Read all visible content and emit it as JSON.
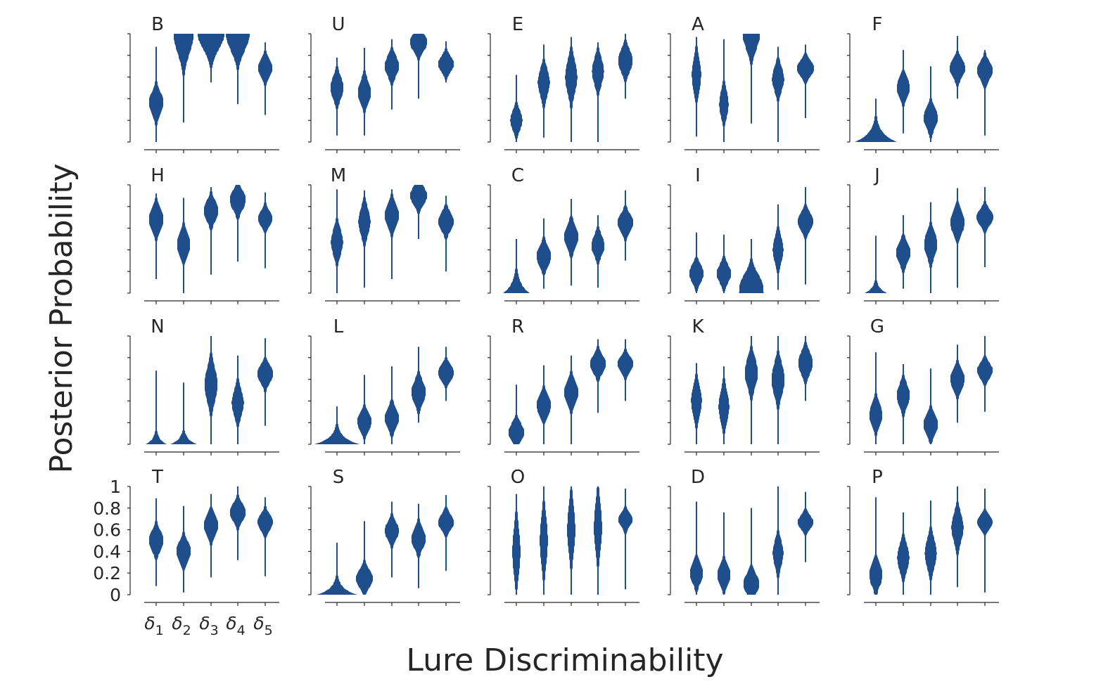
{
  "chart_data": {
    "type": "violin",
    "xlabel": "Lure Discriminability",
    "ylabel": "Posterior Probability",
    "x_tick_labels": [
      {
        "sym": "δ",
        "sub": "1"
      },
      {
        "sym": "δ",
        "sub": "2"
      },
      {
        "sym": "δ",
        "sub": "3"
      },
      {
        "sym": "δ",
        "sub": "4"
      },
      {
        "sym": "δ",
        "sub": "5"
      }
    ],
    "y_tick_labels": [
      "0",
      "0.2",
      "0.4",
      "0.6",
      "0.8",
      "1"
    ],
    "ylim": [
      0,
      1
    ],
    "color": "#1f4e8c",
    "note": "Each violin: lo, hi = extent of posterior; c = center of mass; w = relative max half-width (1 = full); s = spread.",
    "panels": [
      {
        "label": "B",
        "violins": [
          {
            "lo": 0.0,
            "hi": 0.88,
            "c": 0.36,
            "w": 0.55,
            "s": 0.1
          },
          {
            "lo": 0.18,
            "hi": 1.0,
            "c": 1.0,
            "w": 0.75,
            "s": 0.18
          },
          {
            "lo": 0.55,
            "hi": 1.0,
            "c": 1.0,
            "w": 1.0,
            "s": 0.14
          },
          {
            "lo": 0.35,
            "hi": 1.0,
            "c": 1.0,
            "w": 0.9,
            "s": 0.15
          },
          {
            "lo": 0.25,
            "hi": 0.92,
            "c": 0.68,
            "w": 0.55,
            "s": 0.08
          }
        ]
      },
      {
        "label": "U",
        "violins": [
          {
            "lo": 0.06,
            "hi": 0.78,
            "c": 0.5,
            "w": 0.5,
            "s": 0.1
          },
          {
            "lo": 0.06,
            "hi": 0.87,
            "c": 0.46,
            "w": 0.5,
            "s": 0.1
          },
          {
            "lo": 0.3,
            "hi": 0.95,
            "c": 0.7,
            "w": 0.55,
            "s": 0.09
          },
          {
            "lo": 0.4,
            "hi": 1.0,
            "c": 0.92,
            "w": 0.65,
            "s": 0.08
          },
          {
            "lo": 0.55,
            "hi": 0.93,
            "c": 0.72,
            "w": 0.6,
            "s": 0.07
          }
        ]
      },
      {
        "label": "E",
        "violins": [
          {
            "lo": 0.0,
            "hi": 0.62,
            "c": 0.2,
            "w": 0.45,
            "s": 0.09
          },
          {
            "lo": 0.04,
            "hi": 0.9,
            "c": 0.55,
            "w": 0.45,
            "s": 0.12
          },
          {
            "lo": 0.0,
            "hi": 0.97,
            "c": 0.6,
            "w": 0.45,
            "s": 0.15
          },
          {
            "lo": 0.0,
            "hi": 0.92,
            "c": 0.65,
            "w": 0.45,
            "s": 0.12
          },
          {
            "lo": 0.4,
            "hi": 1.0,
            "c": 0.75,
            "w": 0.55,
            "s": 0.1
          }
        ]
      },
      {
        "label": "A",
        "violins": [
          {
            "lo": 0.05,
            "hi": 0.97,
            "c": 0.62,
            "w": 0.35,
            "s": 0.15
          },
          {
            "lo": 0.0,
            "hi": 0.95,
            "c": 0.35,
            "w": 0.35,
            "s": 0.12
          },
          {
            "lo": 0.17,
            "hi": 1.0,
            "c": 1.0,
            "w": 0.65,
            "s": 0.14
          },
          {
            "lo": 0.0,
            "hi": 0.88,
            "c": 0.58,
            "w": 0.45,
            "s": 0.11
          },
          {
            "lo": 0.22,
            "hi": 0.9,
            "c": 0.68,
            "w": 0.65,
            "s": 0.07
          }
        ]
      },
      {
        "label": "F",
        "violins": [
          {
            "lo": 0.0,
            "hi": 0.4,
            "c": 0.0,
            "w": 0.0,
            "s": 0.08,
            "floor": [
              0.0,
              1.6
            ],
            "tail": 0.08
          },
          {
            "lo": 0.08,
            "hi": 0.85,
            "c": 0.5,
            "w": 0.5,
            "s": 0.09
          },
          {
            "lo": 0.0,
            "hi": 0.7,
            "c": 0.22,
            "w": 0.55,
            "s": 0.09
          },
          {
            "lo": 0.4,
            "hi": 0.98,
            "c": 0.68,
            "w": 0.6,
            "s": 0.08
          },
          {
            "lo": 0.06,
            "hi": 0.85,
            "c": 0.66,
            "w": 0.6,
            "s": 0.08
          }
        ]
      },
      {
        "label": "H",
        "violins": [
          {
            "lo": 0.13,
            "hi": 0.92,
            "c": 0.68,
            "w": 0.55,
            "s": 0.1
          },
          {
            "lo": 0.0,
            "hi": 0.88,
            "c": 0.45,
            "w": 0.5,
            "s": 0.1
          },
          {
            "lo": 0.17,
            "hi": 0.98,
            "c": 0.76,
            "w": 0.55,
            "s": 0.09
          },
          {
            "lo": 0.29,
            "hi": 1.0,
            "c": 0.86,
            "w": 0.6,
            "s": 0.09
          },
          {
            "lo": 0.23,
            "hi": 0.93,
            "c": 0.69,
            "w": 0.55,
            "s": 0.07
          }
        ]
      },
      {
        "label": "M",
        "violins": [
          {
            "lo": 0.0,
            "hi": 0.96,
            "c": 0.47,
            "w": 0.45,
            "s": 0.12
          },
          {
            "lo": 0.05,
            "hi": 0.95,
            "c": 0.66,
            "w": 0.45,
            "s": 0.12
          },
          {
            "lo": 0.13,
            "hi": 0.96,
            "c": 0.72,
            "w": 0.55,
            "s": 0.1
          },
          {
            "lo": 0.5,
            "hi": 1.0,
            "c": 0.9,
            "w": 0.65,
            "s": 0.08
          },
          {
            "lo": 0.2,
            "hi": 0.9,
            "c": 0.66,
            "w": 0.6,
            "s": 0.08
          }
        ]
      },
      {
        "label": "C",
        "violins": [
          {
            "lo": 0.0,
            "hi": 0.5,
            "c": 0.05,
            "w": 0.0,
            "s": 0.07,
            "floor": [
              0.0,
              1.0
            ],
            "tail": 0.09
          },
          {
            "lo": 0.04,
            "hi": 0.69,
            "c": 0.34,
            "w": 0.55,
            "s": 0.09
          },
          {
            "lo": 0.07,
            "hi": 0.87,
            "c": 0.52,
            "w": 0.55,
            "s": 0.1
          },
          {
            "lo": 0.05,
            "hi": 0.72,
            "c": 0.44,
            "w": 0.5,
            "s": 0.09
          },
          {
            "lo": 0.3,
            "hi": 0.95,
            "c": 0.65,
            "w": 0.6,
            "s": 0.08
          }
        ]
      },
      {
        "label": "I",
        "violins": [
          {
            "lo": 0.0,
            "hi": 0.56,
            "c": 0.18,
            "w": 0.55,
            "s": 0.08
          },
          {
            "lo": 0.0,
            "hi": 0.54,
            "c": 0.18,
            "w": 0.55,
            "s": 0.08
          },
          {
            "lo": 0.0,
            "hi": 0.5,
            "c": 0.05,
            "w": 0.9,
            "s": 0.12,
            "floor": [
              0.0,
              0.95
            ]
          },
          {
            "lo": 0.03,
            "hi": 0.82,
            "c": 0.4,
            "w": 0.4,
            "s": 0.12
          },
          {
            "lo": 0.08,
            "hi": 0.98,
            "c": 0.66,
            "w": 0.6,
            "s": 0.08
          }
        ]
      },
      {
        "label": "J",
        "violins": [
          {
            "lo": 0.0,
            "hi": 0.53,
            "c": 0.11,
            "w": 0.0,
            "s": 0.07,
            "floor": [
              0.0,
              0.85
            ],
            "tail": 0.05
          },
          {
            "lo": 0.04,
            "hi": 0.72,
            "c": 0.37,
            "w": 0.55,
            "s": 0.09
          },
          {
            "lo": 0.0,
            "hi": 0.84,
            "c": 0.45,
            "w": 0.5,
            "s": 0.11
          },
          {
            "lo": 0.05,
            "hi": 0.97,
            "c": 0.65,
            "w": 0.55,
            "s": 0.1
          },
          {
            "lo": 0.24,
            "hi": 0.98,
            "c": 0.7,
            "w": 0.65,
            "s": 0.07
          }
        ]
      },
      {
        "label": "N",
        "violins": [
          {
            "lo": 0.0,
            "hi": 0.68,
            "c": 0.11,
            "w": 0.0,
            "s": 0.08,
            "floor": [
              0.0,
              0.8
            ],
            "tail": 0.05
          },
          {
            "lo": 0.0,
            "hi": 0.57,
            "c": 0.05,
            "w": 0.0,
            "s": 0.08,
            "floor": [
              0.0,
              1.0
            ],
            "tail": 0.05
          },
          {
            "lo": 0.0,
            "hi": 1.0,
            "c": 0.55,
            "w": 0.5,
            "s": 0.15
          },
          {
            "lo": 0.0,
            "hi": 0.82,
            "c": 0.38,
            "w": 0.45,
            "s": 0.12
          },
          {
            "lo": 0.17,
            "hi": 0.98,
            "c": 0.65,
            "w": 0.6,
            "s": 0.08
          }
        ]
      },
      {
        "label": "L",
        "violins": [
          {
            "lo": 0.0,
            "hi": 0.35,
            "c": 0.0,
            "w": 0.0,
            "s": 0.08,
            "floor": [
              0.0,
              1.7
            ],
            "tail": 0.06
          },
          {
            "lo": 0.0,
            "hi": 0.64,
            "c": 0.21,
            "w": 0.55,
            "s": 0.08
          },
          {
            "lo": 0.0,
            "hi": 0.72,
            "c": 0.24,
            "w": 0.55,
            "s": 0.09
          },
          {
            "lo": 0.2,
            "hi": 0.9,
            "c": 0.48,
            "w": 0.55,
            "s": 0.1
          },
          {
            "lo": 0.4,
            "hi": 0.9,
            "c": 0.66,
            "w": 0.6,
            "s": 0.07
          }
        ]
      },
      {
        "label": "R",
        "violins": [
          {
            "lo": 0.0,
            "hi": 0.55,
            "c": 0.11,
            "w": 0.6,
            "s": 0.08
          },
          {
            "lo": 0.0,
            "hi": 0.73,
            "c": 0.36,
            "w": 0.55,
            "s": 0.09
          },
          {
            "lo": 0.0,
            "hi": 0.82,
            "c": 0.48,
            "w": 0.55,
            "s": 0.1
          },
          {
            "lo": 0.29,
            "hi": 0.97,
            "c": 0.74,
            "w": 0.6,
            "s": 0.08
          },
          {
            "lo": 0.4,
            "hi": 0.97,
            "c": 0.74,
            "w": 0.6,
            "s": 0.07
          }
        ]
      },
      {
        "label": "K",
        "violins": [
          {
            "lo": 0.0,
            "hi": 0.75,
            "c": 0.4,
            "w": 0.4,
            "s": 0.14
          },
          {
            "lo": 0.0,
            "hi": 0.72,
            "c": 0.35,
            "w": 0.4,
            "s": 0.14
          },
          {
            "lo": 0.0,
            "hi": 1.0,
            "c": 0.66,
            "w": 0.5,
            "s": 0.13
          },
          {
            "lo": 0.0,
            "hi": 1.0,
            "c": 0.6,
            "w": 0.5,
            "s": 0.14
          },
          {
            "lo": 0.4,
            "hi": 1.0,
            "c": 0.75,
            "w": 0.55,
            "s": 0.1
          }
        ]
      },
      {
        "label": "G",
        "violins": [
          {
            "lo": 0.0,
            "hi": 0.85,
            "c": 0.27,
            "w": 0.5,
            "s": 0.1
          },
          {
            "lo": 0.0,
            "hi": 0.74,
            "c": 0.45,
            "w": 0.5,
            "s": 0.1
          },
          {
            "lo": 0.0,
            "hi": 0.7,
            "c": 0.18,
            "w": 0.55,
            "s": 0.09
          },
          {
            "lo": 0.2,
            "hi": 0.92,
            "c": 0.6,
            "w": 0.55,
            "s": 0.09
          },
          {
            "lo": 0.3,
            "hi": 1.0,
            "c": 0.68,
            "w": 0.6,
            "s": 0.07
          }
        ]
      },
      {
        "label": "T",
        "violins": [
          {
            "lo": 0.08,
            "hi": 0.89,
            "c": 0.5,
            "w": 0.55,
            "s": 0.09
          },
          {
            "lo": 0.02,
            "hi": 0.82,
            "c": 0.4,
            "w": 0.55,
            "s": 0.09
          },
          {
            "lo": 0.16,
            "hi": 0.93,
            "c": 0.64,
            "w": 0.55,
            "s": 0.09
          },
          {
            "lo": 0.32,
            "hi": 1.0,
            "c": 0.76,
            "w": 0.6,
            "s": 0.08
          },
          {
            "lo": 0.17,
            "hi": 0.9,
            "c": 0.67,
            "w": 0.6,
            "s": 0.07
          }
        ]
      },
      {
        "label": "S",
        "violins": [
          {
            "lo": 0.0,
            "hi": 0.48,
            "c": 0.05,
            "w": 0.0,
            "s": 0.08,
            "floor": [
              0.0,
              1.5
            ],
            "tail": 0.06
          },
          {
            "lo": 0.0,
            "hi": 0.68,
            "c": 0.15,
            "w": 0.65,
            "s": 0.08
          },
          {
            "lo": 0.16,
            "hi": 0.86,
            "c": 0.59,
            "w": 0.55,
            "s": 0.08
          },
          {
            "lo": 0.06,
            "hi": 0.84,
            "c": 0.52,
            "w": 0.55,
            "s": 0.09
          },
          {
            "lo": 0.22,
            "hi": 0.92,
            "c": 0.67,
            "w": 0.6,
            "s": 0.07
          }
        ]
      },
      {
        "label": "O",
        "violins": [
          {
            "lo": 0.0,
            "hi": 0.93,
            "c": 0.4,
            "w": 0.3,
            "s": 0.22
          },
          {
            "lo": 0.0,
            "hi": 1.0,
            "c": 0.5,
            "w": 0.3,
            "s": 0.22
          },
          {
            "lo": 0.0,
            "hi": 1.0,
            "c": 0.6,
            "w": 0.3,
            "s": 0.22
          },
          {
            "lo": 0.0,
            "hi": 1.0,
            "c": 0.62,
            "w": 0.3,
            "s": 0.22
          },
          {
            "lo": 0.05,
            "hi": 0.98,
            "c": 0.69,
            "w": 0.55,
            "s": 0.06
          }
        ]
      },
      {
        "label": "D",
        "violins": [
          {
            "lo": 0.0,
            "hi": 0.86,
            "c": 0.2,
            "w": 0.5,
            "s": 0.09
          },
          {
            "lo": 0.0,
            "hi": 0.76,
            "c": 0.18,
            "w": 0.5,
            "s": 0.09
          },
          {
            "lo": 0.0,
            "hi": 0.8,
            "c": 0.1,
            "w": 0.6,
            "s": 0.09
          },
          {
            "lo": 0.0,
            "hi": 1.0,
            "c": 0.38,
            "w": 0.4,
            "s": 0.12
          },
          {
            "lo": 0.3,
            "hi": 0.95,
            "c": 0.67,
            "w": 0.6,
            "s": 0.06
          }
        ]
      },
      {
        "label": "P",
        "violins": [
          {
            "lo": 0.0,
            "hi": 0.9,
            "c": 0.18,
            "w": 0.5,
            "s": 0.1
          },
          {
            "lo": 0.0,
            "hi": 0.76,
            "c": 0.34,
            "w": 0.45,
            "s": 0.12
          },
          {
            "lo": 0.0,
            "hi": 0.87,
            "c": 0.38,
            "w": 0.45,
            "s": 0.13
          },
          {
            "lo": 0.07,
            "hi": 1.0,
            "c": 0.62,
            "w": 0.45,
            "s": 0.13
          },
          {
            "lo": 0.02,
            "hi": 0.98,
            "c": 0.67,
            "w": 0.6,
            "s": 0.06
          }
        ]
      }
    ]
  }
}
